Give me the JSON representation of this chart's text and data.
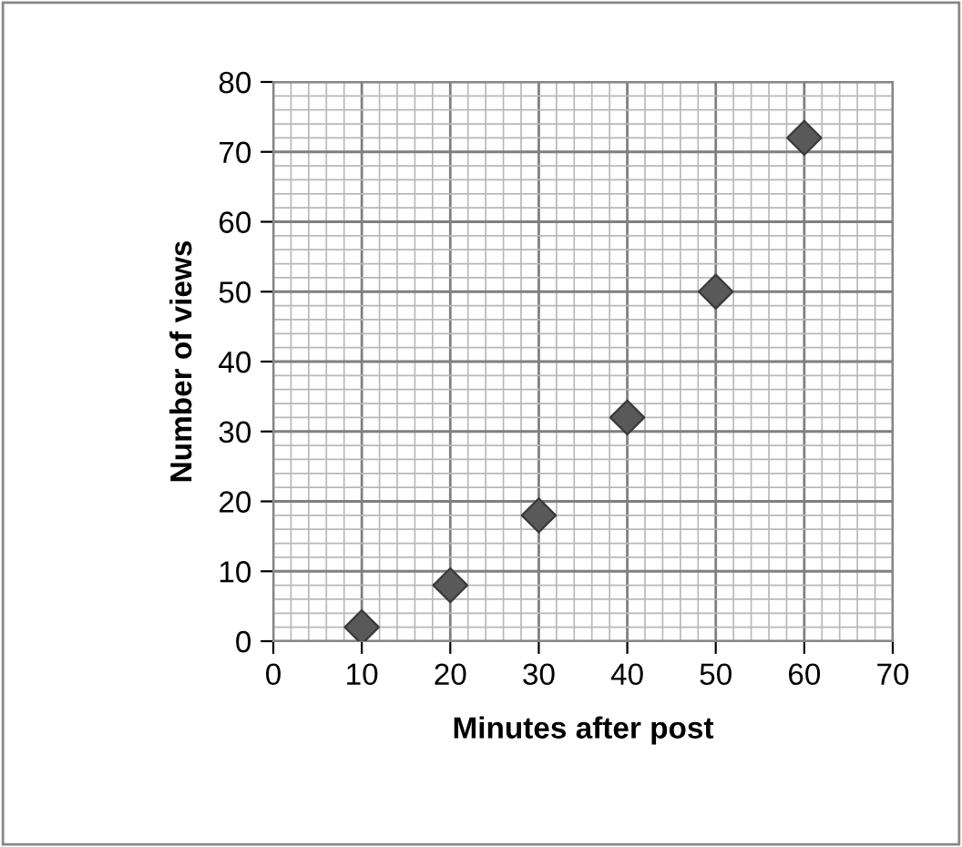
{
  "chart_data": {
    "type": "scatter",
    "xlabel": "Minutes after post",
    "ylabel": "Number of views",
    "x": [
      10,
      20,
      30,
      40,
      50,
      60
    ],
    "values": [
      2,
      8,
      18,
      32,
      50,
      72
    ],
    "color": "#595959",
    "xlim": [
      0,
      70
    ],
    "ylim": [
      0,
      80
    ],
    "xticks": [
      0,
      10,
      20,
      30,
      40,
      50,
      60,
      70
    ],
    "yticks": [
      0,
      10,
      20,
      30,
      40,
      50,
      60,
      70,
      80
    ],
    "grid": true,
    "marker": "diamond",
    "legend": false
  }
}
